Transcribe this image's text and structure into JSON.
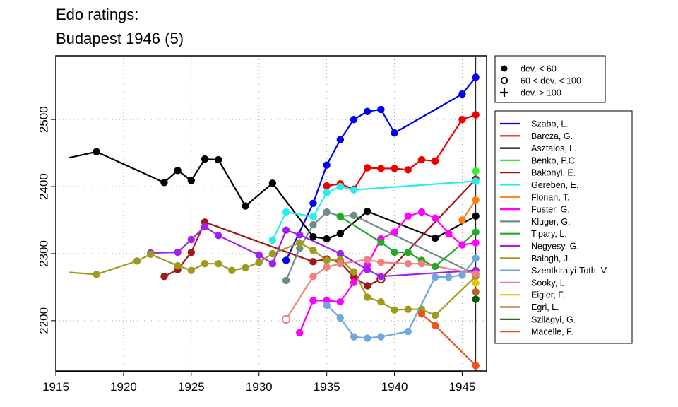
{
  "chart_data": {
    "type": "line",
    "title": [
      "Edo ratings:",
      "Budapest 1946 (5)"
    ],
    "xlabel": "",
    "ylabel": "",
    "xlim": [
      1915,
      1946.8
    ],
    "ylim": [
      2125,
      2595
    ],
    "x_ticks": [
      1915,
      1920,
      1925,
      1930,
      1935,
      1940,
      1945
    ],
    "y_ticks": [
      2200,
      2300,
      2400,
      2500
    ],
    "grid": "dotted",
    "marker_line_x": 1946,
    "marker_legend": {
      "placement": "top-right, outside plot",
      "items": [
        {
          "symbol": "filled",
          "label": "dev. < 60"
        },
        {
          "symbol": "open",
          "label": "60 < dev. < 100"
        },
        {
          "symbol": "plus",
          "label": "dev. > 100"
        }
      ]
    },
    "legend_placement": "right, outside plot",
    "series": [
      {
        "name": "Szabo, L.",
        "color": "#0000ee",
        "points": [
          [
            1932,
            2290
          ],
          [
            1934,
            2375
          ],
          [
            1935,
            2432
          ],
          [
            1936,
            2470
          ],
          [
            1937,
            2500
          ],
          [
            1938,
            2512
          ],
          [
            1939,
            2515
          ],
          [
            1940,
            2480
          ],
          [
            1945,
            2538
          ],
          [
            1946,
            2563
          ]
        ]
      },
      {
        "name": "Barcza, G.",
        "color": "#ee0000",
        "points": [
          [
            1935,
            2401
          ],
          [
            1936,
            2404
          ],
          [
            1937,
            2396
          ],
          [
            1938,
            2428
          ],
          [
            1939,
            2427
          ],
          [
            1940,
            2427
          ],
          [
            1941,
            2425
          ],
          [
            1942,
            2440
          ],
          [
            1943,
            2438
          ],
          [
            1945,
            2500
          ],
          [
            1946,
            2507
          ]
        ]
      },
      {
        "name": "Asztalos, L.",
        "color": "#000000",
        "points": [
          [
            1916,
            2443,
            "none"
          ],
          [
            1918,
            2452
          ],
          [
            1923,
            2406
          ],
          [
            1924,
            2424
          ],
          [
            1925,
            2409
          ],
          [
            1926,
            2441
          ],
          [
            1927,
            2440
          ],
          [
            1929,
            2371
          ],
          [
            1931,
            2405
          ],
          [
            1934,
            2325
          ],
          [
            1935,
            2322
          ],
          [
            1936,
            2330
          ],
          [
            1938,
            2363
          ],
          [
            1943,
            2323
          ],
          [
            1946,
            2356
          ]
        ]
      },
      {
        "name": "Benko, P.C.",
        "color": "#33ee33",
        "points": [
          [
            1946,
            2423
          ]
        ]
      },
      {
        "name": "Bakonyi, E.",
        "color": "#a01818",
        "points": [
          [
            1923,
            2266
          ],
          [
            1924,
            2276
          ],
          [
            1925,
            2302
          ],
          [
            1926,
            2347
          ],
          [
            1934,
            2288
          ],
          [
            1935,
            2292
          ],
          [
            1936,
            2287
          ],
          [
            1937,
            2265
          ],
          [
            1938,
            2252
          ],
          [
            1939,
            2262,
            "open"
          ],
          [
            1946,
            2411
          ]
        ]
      },
      {
        "name": "Gereben, E.",
        "color": "#22f0f0",
        "points": [
          [
            1931,
            2320
          ],
          [
            1932,
            2362
          ],
          [
            1934,
            2355
          ],
          [
            1935,
            2391
          ],
          [
            1936,
            2400
          ],
          [
            1937,
            2395
          ],
          [
            1946,
            2408
          ]
        ]
      },
      {
        "name": "Florian, T.",
        "color": "#ff7f11",
        "points": [
          [
            1945,
            2350
          ],
          [
            1946,
            2380
          ]
        ]
      },
      {
        "name": "Fuster, G.",
        "color": "#ff00ff",
        "points": [
          [
            1933,
            2182
          ],
          [
            1934,
            2230
          ],
          [
            1935,
            2230
          ],
          [
            1936,
            2228
          ],
          [
            1937,
            2257
          ],
          [
            1938,
            2283
          ],
          [
            1939,
            2322
          ],
          [
            1940,
            2332
          ],
          [
            1941,
            2356
          ],
          [
            1942,
            2362
          ],
          [
            1943,
            2353
          ],
          [
            1944,
            2330
          ],
          [
            1945,
            2313
          ],
          [
            1946,
            2316
          ]
        ]
      },
      {
        "name": "Kluger, G.",
        "color": "#6f8c8c",
        "points": [
          [
            1932,
            2260
          ],
          [
            1933,
            2308
          ],
          [
            1934,
            2343
          ],
          [
            1935,
            2362
          ],
          [
            1936,
            2356
          ],
          [
            1937,
            2357
          ],
          [
            1946,
            2269
          ]
        ]
      },
      {
        "name": "Tipary, L.",
        "color": "#22aa22",
        "points": [
          [
            1936,
            2355
          ],
          [
            1939,
            2317
          ],
          [
            1940,
            2302
          ],
          [
            1941,
            2302
          ],
          [
            1942,
            2290
          ],
          [
            1943,
            2281
          ],
          [
            1946,
            2332
          ]
        ]
      },
      {
        "name": "Negyesy, G.",
        "color": "#a020f0",
        "points": [
          [
            1922,
            2301
          ],
          [
            1924,
            2302
          ],
          [
            1925,
            2321
          ],
          [
            1926,
            2340
          ],
          [
            1927,
            2327
          ],
          [
            1930,
            2298
          ],
          [
            1931,
            2285
          ],
          [
            1932,
            2335
          ],
          [
            1933,
            2328
          ],
          [
            1936,
            2300
          ],
          [
            1938,
            2276
          ],
          [
            1939,
            2266
          ],
          [
            1946,
            2275
          ]
        ]
      },
      {
        "name": "Balogh, J.",
        "color": "#a09a1a",
        "points": [
          [
            1916,
            2272,
            "none"
          ],
          [
            1918,
            2269
          ],
          [
            1921,
            2289
          ],
          [
            1922,
            2299
          ],
          [
            1924,
            2282
          ],
          [
            1925,
            2275
          ],
          [
            1926,
            2285
          ],
          [
            1927,
            2285
          ],
          [
            1928,
            2275
          ],
          [
            1929,
            2279
          ],
          [
            1930,
            2287
          ],
          [
            1931,
            2300
          ],
          [
            1933,
            2316
          ],
          [
            1934,
            2305
          ],
          [
            1935,
            2290
          ],
          [
            1936,
            2291
          ],
          [
            1937,
            2273
          ],
          [
            1938,
            2235
          ],
          [
            1939,
            2228
          ],
          [
            1940,
            2216
          ],
          [
            1941,
            2217
          ],
          [
            1942,
            2217
          ],
          [
            1943,
            2208
          ],
          [
            1946,
            2266
          ]
        ]
      },
      {
        "name": "Szentkiralyi-Toth, V.",
        "color": "#6fa8dc",
        "points": [
          [
            1935,
            2223
          ],
          [
            1936,
            2204
          ],
          [
            1937,
            2176
          ],
          [
            1938,
            2174
          ],
          [
            1939,
            2176
          ],
          [
            1941,
            2184
          ],
          [
            1943,
            2265
          ],
          [
            1944,
            2265
          ],
          [
            1945,
            2268
          ],
          [
            1946,
            2293
          ]
        ]
      },
      {
        "name": "Sooky, L.",
        "color": "#f08080",
        "points": [
          [
            1932,
            2202,
            "open"
          ],
          [
            1934,
            2266
          ],
          [
            1935,
            2280
          ],
          [
            1936,
            2285
          ],
          [
            1938,
            2291
          ],
          [
            1939,
            2287
          ],
          [
            1941,
            2285
          ],
          [
            1942,
            2285
          ],
          [
            1946,
            2270
          ]
        ]
      },
      {
        "name": "Eigler, F.",
        "color": "#f0c000",
        "points": [
          [
            1946,
            2256
          ]
        ]
      },
      {
        "name": "Egri, L.",
        "color": "#b5651d",
        "points": [
          [
            1946,
            2243
          ]
        ]
      },
      {
        "name": "Szilagyi, G.",
        "color": "#0b5a0b",
        "points": [
          [
            1946,
            2232
          ]
        ]
      },
      {
        "name": "Macelle, F.",
        "color": "#f0501e",
        "points": [
          [
            1942,
            2210
          ],
          [
            1943,
            2193
          ],
          [
            1946,
            2133
          ]
        ]
      }
    ]
  }
}
